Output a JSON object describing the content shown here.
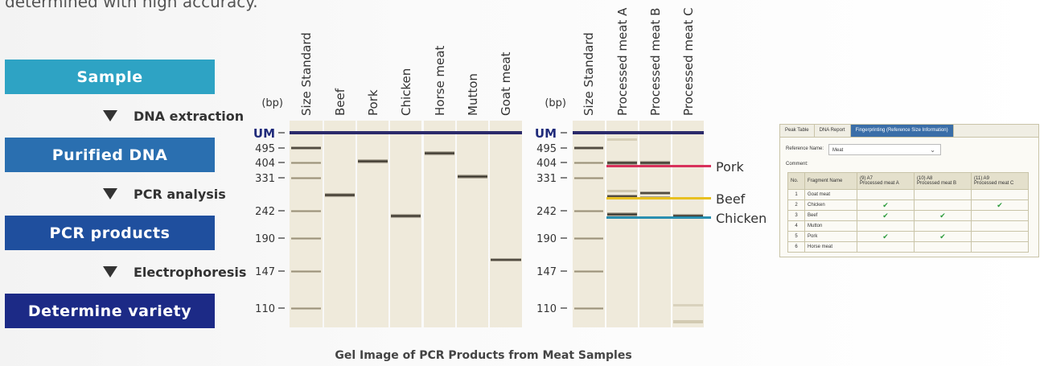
{
  "intro_text": "determined with high accuracy.",
  "workflow": {
    "steps": [
      {
        "label": "Sample",
        "color": "#2ea3c4"
      },
      {
        "label": "Purified DNA",
        "color": "#2a6fb0"
      },
      {
        "label": "PCR products",
        "color": "#1f4f9e"
      },
      {
        "label": "Determine variety",
        "color": "#1c2a86"
      }
    ],
    "transitions": [
      "DNA extraction",
      "PCR analysis",
      "Electrophoresis"
    ]
  },
  "gel": {
    "caption": "Gel Image of PCR Products from Meat Samples",
    "bp_label": "(bp)",
    "marker_label": "UM",
    "size_labels": [
      "495",
      "404",
      "331",
      "242",
      "190",
      "147",
      "110"
    ],
    "gel1_lanes": [
      "Size Standard",
      "Beef",
      "Pork",
      "Chicken",
      "Horse meat",
      "Mutton",
      "Goat meat"
    ],
    "gel2_lanes": [
      "Size Standard",
      "Processed meat A",
      "Processed meat B",
      "Processed meat C"
    ],
    "annotations": [
      {
        "label": "Pork",
        "color": "#d8315b"
      },
      {
        "label": "Beef",
        "color": "#e8c020"
      },
      {
        "label": "Chicken",
        "color": "#2a8fb0"
      }
    ]
  },
  "software": {
    "tabs": [
      "Peak Table",
      "DNA Report",
      "Fingerprinting (Reference Size Information)"
    ],
    "reference_label": "Reference Name:",
    "reference_value": "Meat",
    "comment_label": "Comment:",
    "columns": [
      "No.",
      "Fragment Name",
      "(9) A7",
      "Processed meat A",
      "(10) A8",
      "Processed meat B",
      "(11) A9",
      "Processed meat C"
    ],
    "rows": [
      {
        "no": "1",
        "name": "Goat meat",
        "a": "",
        "b": "",
        "c": ""
      },
      {
        "no": "2",
        "name": "Chicken",
        "a": "✔",
        "b": "",
        "c": "✔"
      },
      {
        "no": "3",
        "name": "Beef",
        "a": "✔",
        "b": "✔",
        "c": ""
      },
      {
        "no": "4",
        "name": "Mutton",
        "a": "",
        "b": "",
        "c": ""
      },
      {
        "no": "5",
        "name": "Pork",
        "a": "✔",
        "b": "✔",
        "c": ""
      },
      {
        "no": "6",
        "name": "Horse meat",
        "a": "",
        "b": "",
        "c": ""
      }
    ]
  }
}
